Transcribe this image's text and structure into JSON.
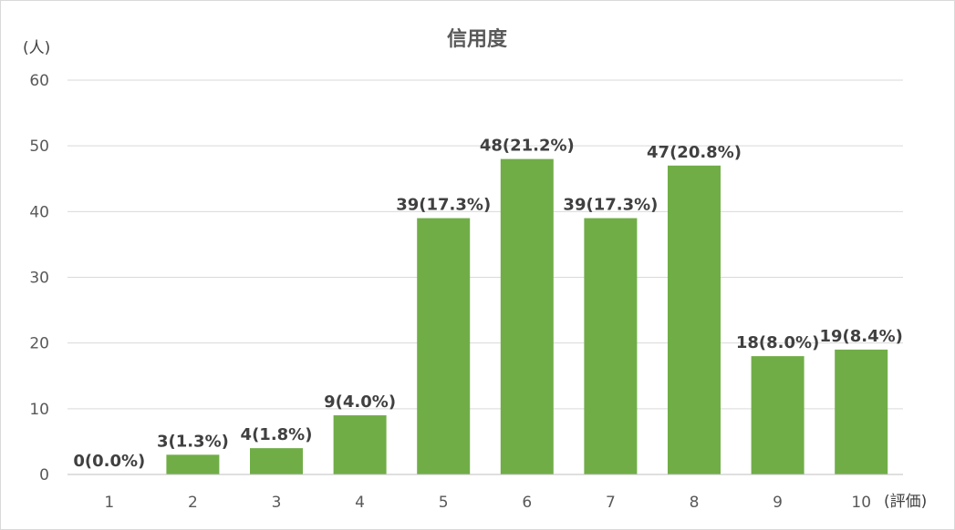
{
  "chart_data": {
    "type": "bar",
    "title": "信用度",
    "y_unit_label": "(人)",
    "x_unit_label": "(評価)",
    "categories": [
      "1",
      "2",
      "3",
      "4",
      "5",
      "6",
      "7",
      "8",
      "9",
      "10"
    ],
    "values": [
      0,
      3,
      4,
      9,
      39,
      48,
      39,
      47,
      18,
      19
    ],
    "data_labels": [
      "0(0.0%)",
      "3(1.3%)",
      "4(1.8%)",
      "9(4.0%)",
      "39(17.3%)",
      "48(21.2%)",
      "39(17.3%)",
      "47(20.8%)",
      "18(8.0%)",
      "19(8.4%)"
    ],
    "ylim": [
      0,
      60
    ],
    "yticks": [
      "0",
      "10",
      "20",
      "30",
      "40",
      "50",
      "60"
    ],
    "grid": true,
    "legend": "none",
    "colors": {
      "bar": "#70ad47",
      "grid": "#d9d9d9",
      "axis": "#bfbfbf"
    }
  }
}
